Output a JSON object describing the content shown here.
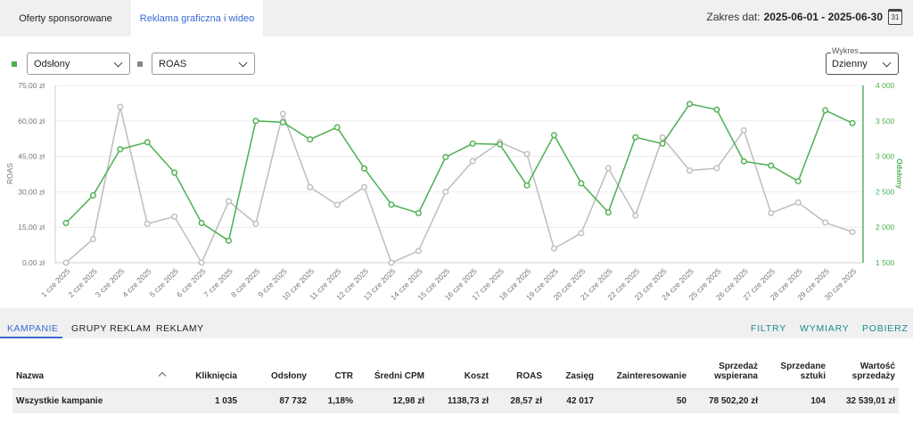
{
  "tabs": [
    {
      "label": "Oferty sponsorowane",
      "active": false
    },
    {
      "label": "Reklama graficzna i wideo",
      "active": true
    }
  ],
  "date_range": {
    "label": "Zakres dat:",
    "value": "2025-06-01 - 2025-06-30",
    "calendar_day": "31"
  },
  "controls": {
    "metric1": {
      "value": "Odsłony",
      "color": "#4caf50"
    },
    "metric2": {
      "value": "ROAS",
      "color": "#888888"
    },
    "chart_mode": {
      "legend": "Wykres",
      "value": "Dzienny"
    }
  },
  "chart_data": {
    "type": "line",
    "x": [
      "1 cze 2025",
      "2 cze 2025",
      "3 cze 2025",
      "4 cze 2025",
      "5 cze 2025",
      "6 cze 2025",
      "7 cze 2025",
      "8 cze 2025",
      "9 cze 2025",
      "10 cze 2025",
      "11 cze 2025",
      "12 cze 2025",
      "13 cze 2025",
      "14 cze 2025",
      "15 cze 2025",
      "16 cze 2025",
      "17 cze 2025",
      "18 cze 2025",
      "19 cze 2025",
      "20 cze 2025",
      "21 cze 2025",
      "22 cze 2025",
      "23 cze 2025",
      "24 cze 2025",
      "25 cze 2025",
      "26 cze 2025",
      "27 cze 2025",
      "28 cze 2025",
      "29 cze 2025",
      "30 cze 2025"
    ],
    "ylabel_left": "ROAS",
    "ylabel_right": "Odsłony",
    "ylim_left": [
      0,
      75
    ],
    "ylim_right": [
      1500,
      4000
    ],
    "left_ticks": [
      "0,00 zł",
      "15,00 zł",
      "30,00 zł",
      "45,00 zł",
      "60,00 zł",
      "75,00 zł"
    ],
    "right_ticks": [
      "1 500",
      "2 000",
      "2 500",
      "3 000",
      "3 500",
      "4 000"
    ],
    "grid": true,
    "series": [
      {
        "name": "Odsłony",
        "axis": "right",
        "color": "#4caf50",
        "values": [
          2060,
          2450,
          3100,
          3200,
          2770,
          2060,
          1810,
          3500,
          3480,
          3240,
          3410,
          2830,
          2320,
          2200,
          2990,
          3180,
          3170,
          2590,
          3300,
          2620,
          2210,
          3270,
          3180,
          3740,
          3660,
          2930,
          2870,
          2650,
          3650,
          3470
        ]
      },
      {
        "name": "ROAS",
        "axis": "left",
        "color": "#bdbdbd",
        "values": [
          0,
          10,
          66,
          16.5,
          19.5,
          0,
          26,
          16.5,
          63,
          32,
          24.5,
          32,
          0,
          5,
          30,
          43,
          51,
          46,
          6,
          12.5,
          40,
          20,
          53,
          39,
          40,
          56,
          21,
          25.5,
          17,
          13
        ]
      }
    ]
  },
  "subtabs": [
    "KAMPANIE",
    "GRUPY REKLAM",
    "REKLAMY"
  ],
  "actions": [
    "FILTRY",
    "WYMIARY",
    "POBIERZ"
  ],
  "table": {
    "headers": [
      [
        "Nazwa"
      ],
      [
        "Kliknięcia"
      ],
      [
        "Odsłony"
      ],
      [
        "CTR"
      ],
      [
        "Średni CPM"
      ],
      [
        "Koszt"
      ],
      [
        "ROAS"
      ],
      [
        "Zasięg"
      ],
      [
        "Zainteresowanie"
      ],
      [
        "Sprzedaż",
        "wspierana"
      ],
      [
        "Sprzedane",
        "sztuki"
      ],
      [
        "Wartość",
        "sprzedaży"
      ]
    ],
    "rows": [
      [
        "Wszystkie kampanie",
        "1 035",
        "87 732",
        "1,18%",
        "12,98 zł",
        "1138,73 zł",
        "28,57 zł",
        "42 017",
        "50",
        "78 502,20 zł",
        "104",
        "32 539,01 zł"
      ]
    ]
  }
}
